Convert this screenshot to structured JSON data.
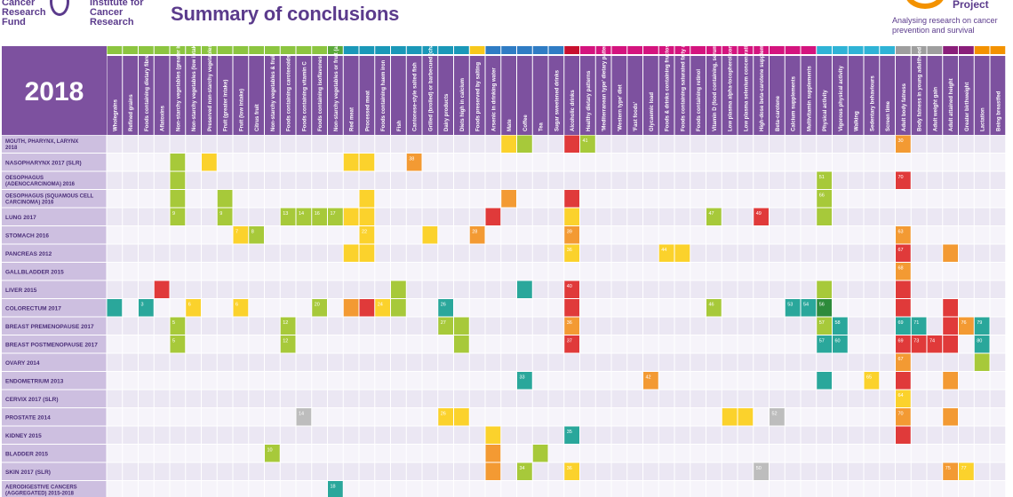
{
  "header": {
    "logo_left_lines": [
      "Cancer",
      "Research",
      "Fund"
    ],
    "logo_mid_lines": [
      "Institute for",
      "Cancer",
      "Research"
    ],
    "title": "Summary of conclusions",
    "project_label": "Project",
    "tagline": "Analysing research on cancer prevention and survival"
  },
  "matrix": {
    "year": "2018",
    "columns": [
      {
        "label": "Wholegrains",
        "group": "g"
      },
      {
        "label": "Refined grains",
        "group": "g"
      },
      {
        "label": "Foods containing dietary fibre",
        "group": "g"
      },
      {
        "label": "Aflatoxins",
        "group": "g"
      },
      {
        "label": "Non-starchy vegetables (greater intake)",
        "group": "g"
      },
      {
        "label": "Non-starchy vegetables (low intake)",
        "group": "g"
      },
      {
        "label": "Preserved non-starchy vegetables",
        "group": "g"
      },
      {
        "label": "Fruit (greater intake)",
        "group": "g"
      },
      {
        "label": "Fruit (low intake)",
        "group": "g"
      },
      {
        "label": "Citrus fruit",
        "group": "g"
      },
      {
        "label": "Non-starchy vegetables & fruit",
        "group": "g"
      },
      {
        "label": "Foods containing carotenoids",
        "group": "g"
      },
      {
        "label": "Foods containing vitamin C",
        "group": "g"
      },
      {
        "label": "Foods containing isoflavones",
        "group": "g"
      },
      {
        "label": "Non-starchy vegetables or fruit (aggregated)",
        "group": "g2"
      },
      {
        "label": "Red meat",
        "group": "t"
      },
      {
        "label": "Processed meat",
        "group": "t"
      },
      {
        "label": "Foods containing haem iron",
        "group": "t"
      },
      {
        "label": "Fish",
        "group": "t"
      },
      {
        "label": "Cantonese-style salted fish",
        "group": "t"
      },
      {
        "label": "Grilled (broiled) or barbecued (charbroiled) meat and fish",
        "group": "t"
      },
      {
        "label": "Dairy products",
        "group": "t"
      },
      {
        "label": "Diets high in calcium",
        "group": "t"
      },
      {
        "label": "Foods preserved by salting",
        "group": "y"
      },
      {
        "label": "Arsenic in drinking water",
        "group": "b"
      },
      {
        "label": "Mate",
        "group": "b"
      },
      {
        "label": "Coffee",
        "group": "b"
      },
      {
        "label": "Tea",
        "group": "b"
      },
      {
        "label": "Sugar sweetened drinks",
        "group": "b"
      },
      {
        "label": "Alcoholic drinks",
        "group": "r"
      },
      {
        "label": "Healthy dietary patterns",
        "group": "m"
      },
      {
        "label": "'Mediterranean type' dietary pattern",
        "group": "m"
      },
      {
        "label": "'Western type' diet",
        "group": "m"
      },
      {
        "label": "'Fast foods'",
        "group": "m"
      },
      {
        "label": "Glycaemic load",
        "group": "m"
      },
      {
        "label": "Foods & drinks containing fructose",
        "group": "m"
      },
      {
        "label": "Foods containing saturated fatty acids",
        "group": "m"
      },
      {
        "label": "Foods containing retinol",
        "group": "m"
      },
      {
        "label": "Vitamin D (food containing, serum, supplements)",
        "group": "m"
      },
      {
        "label": "Low plasma alpha-tocopherol concentrations",
        "group": "m"
      },
      {
        "label": "Low plasma selenium concentrations",
        "group": "m"
      },
      {
        "label": "High-dose beta-carotene supplements",
        "group": "m"
      },
      {
        "label": "Beta-carotene",
        "group": "m"
      },
      {
        "label": "Calcium supplements",
        "group": "m"
      },
      {
        "label": "Multivitamin supplements",
        "group": "m"
      },
      {
        "label": "Physical activity",
        "group": "c"
      },
      {
        "label": "Vigorous physical activity",
        "group": "c"
      },
      {
        "label": "Walking",
        "group": "c"
      },
      {
        "label": "Sedentary behaviours",
        "group": "c"
      },
      {
        "label": "Screen time",
        "group": "c"
      },
      {
        "label": "Adult body fatness",
        "group": "s"
      },
      {
        "label": "Body fatness in young adulthood",
        "group": "s"
      },
      {
        "label": "Adult weight gain",
        "group": "s"
      },
      {
        "label": "Adult attained height",
        "group": "p"
      },
      {
        "label": "Greater birthweight",
        "group": "p"
      },
      {
        "label": "Lactation",
        "group": "o"
      },
      {
        "label": "Being breastfed",
        "group": "o"
      }
    ],
    "rows": [
      "MOUTH, PHARYNX, LARYNX 2018",
      "NASOPHARYNX 2017 (SLR)",
      "OESOPHAGUS (ADENOCARCINOMA) 2016",
      "OESOPHAGUS (SQUAMOUS CELL CARCINOMA) 2016",
      "LUNG 2017",
      "STOMACH 2016",
      "PANCREAS 2012",
      "GALLBLADDER 2015",
      "LIVER 2015",
      "COLORECTUM 2017",
      "BREAST PREMENOPAUSE 2017",
      "BREAST POSTMENOPAUSE 2017",
      "OVARY 2014",
      "ENDOMETRIUM 2013",
      "CERVIX 2017 (SLR)",
      "PROSTATE 2014",
      "KIDNEY 2015",
      "BLADDER 2015",
      "SKIN 2017 (SLR)",
      "AERODIGESTIVE CANCERS (AGGREGATED) 2015-2018"
    ],
    "cells": [
      {
        "r": 0,
        "c": 25,
        "k": "Y"
      },
      {
        "r": 0,
        "c": 26,
        "k": "L"
      },
      {
        "r": 0,
        "c": 29,
        "k": "R"
      },
      {
        "r": 0,
        "c": 30,
        "k": "L",
        "t": "41"
      },
      {
        "r": 0,
        "c": 50,
        "k": "O",
        "t": "30"
      },
      {
        "r": 1,
        "c": 4,
        "k": "L"
      },
      {
        "r": 1,
        "c": 6,
        "k": "Y"
      },
      {
        "r": 1,
        "c": 15,
        "k": "Y"
      },
      {
        "r": 1,
        "c": 16,
        "k": "Y"
      },
      {
        "r": 1,
        "c": 19,
        "k": "O",
        "t": "38"
      },
      {
        "r": 2,
        "c": 4,
        "k": "L"
      },
      {
        "r": 2,
        "c": 45,
        "k": "L",
        "t": "51"
      },
      {
        "r": 2,
        "c": 50,
        "k": "R",
        "t": "70"
      },
      {
        "r": 3,
        "c": 4,
        "k": "L"
      },
      {
        "r": 3,
        "c": 7,
        "k": "L"
      },
      {
        "r": 3,
        "c": 16,
        "k": "Y"
      },
      {
        "r": 3,
        "c": 25,
        "k": "O"
      },
      {
        "r": 3,
        "c": 29,
        "k": "R"
      },
      {
        "r": 3,
        "c": 45,
        "k": "L",
        "t": "66"
      },
      {
        "r": 4,
        "c": 4,
        "k": "L",
        "t": "9"
      },
      {
        "r": 4,
        "c": 7,
        "k": "L",
        "t": "9"
      },
      {
        "r": 4,
        "c": 11,
        "k": "L",
        "t": "13"
      },
      {
        "r": 4,
        "c": 12,
        "k": "L",
        "t": "14"
      },
      {
        "r": 4,
        "c": 13,
        "k": "L",
        "t": "16"
      },
      {
        "r": 4,
        "c": 14,
        "k": "L",
        "t": "17"
      },
      {
        "r": 4,
        "c": 15,
        "k": "Y"
      },
      {
        "r": 4,
        "c": 16,
        "k": "Y"
      },
      {
        "r": 4,
        "c": 24,
        "k": "R"
      },
      {
        "r": 4,
        "c": 29,
        "k": "Y"
      },
      {
        "r": 4,
        "c": 38,
        "k": "L",
        "t": "47"
      },
      {
        "r": 4,
        "c": 41,
        "k": "R",
        "t": "49"
      },
      {
        "r": 4,
        "c": 45,
        "k": "L"
      },
      {
        "r": 5,
        "c": 8,
        "k": "Y",
        "t": "7"
      },
      {
        "r": 5,
        "c": 9,
        "k": "L",
        "t": "8"
      },
      {
        "r": 5,
        "c": 16,
        "k": "Y",
        "t": "22"
      },
      {
        "r": 5,
        "c": 20,
        "k": "Y"
      },
      {
        "r": 5,
        "c": 23,
        "k": "O",
        "t": "28"
      },
      {
        "r": 5,
        "c": 29,
        "k": "O",
        "t": "39"
      },
      {
        "r": 5,
        "c": 50,
        "k": "O",
        "t": "63"
      },
      {
        "r": 6,
        "c": 15,
        "k": "Y"
      },
      {
        "r": 6,
        "c": 16,
        "k": "Y"
      },
      {
        "r": 6,
        "c": 29,
        "k": "Y",
        "t": "36"
      },
      {
        "r": 6,
        "c": 35,
        "k": "Y",
        "t": "44"
      },
      {
        "r": 6,
        "c": 36,
        "k": "Y"
      },
      {
        "r": 6,
        "c": 50,
        "k": "R",
        "t": "67"
      },
      {
        "r": 6,
        "c": 53,
        "k": "O"
      },
      {
        "r": 7,
        "c": 50,
        "k": "O",
        "t": "68"
      },
      {
        "r": 8,
        "c": 3,
        "k": "R"
      },
      {
        "r": 8,
        "c": 18,
        "k": "L"
      },
      {
        "r": 8,
        "c": 26,
        "k": "T"
      },
      {
        "r": 8,
        "c": 29,
        "k": "R",
        "t": "40"
      },
      {
        "r": 8,
        "c": 45,
        "k": "L"
      },
      {
        "r": 8,
        "c": 50,
        "k": "R"
      },
      {
        "r": 9,
        "c": 0,
        "k": "T"
      },
      {
        "r": 9,
        "c": 2,
        "k": "T",
        "t": "3"
      },
      {
        "r": 9,
        "c": 5,
        "k": "Y",
        "t": "6"
      },
      {
        "r": 9,
        "c": 8,
        "k": "Y",
        "t": "6"
      },
      {
        "r": 9,
        "c": 13,
        "k": "L",
        "t": "20"
      },
      {
        "r": 9,
        "c": 15,
        "k": "O"
      },
      {
        "r": 9,
        "c": 16,
        "k": "R"
      },
      {
        "r": 9,
        "c": 17,
        "k": "Y",
        "t": "24"
      },
      {
        "r": 9,
        "c": 18,
        "k": "L"
      },
      {
        "r": 9,
        "c": 21,
        "k": "T",
        "t": "26"
      },
      {
        "r": 9,
        "c": 29,
        "k": "R"
      },
      {
        "r": 9,
        "c": 38,
        "k": "L",
        "t": "46"
      },
      {
        "r": 9,
        "c": 43,
        "k": "T",
        "t": "53"
      },
      {
        "r": 9,
        "c": 44,
        "k": "T",
        "t": "54"
      },
      {
        "r": 9,
        "c": 45,
        "k": "D",
        "t": "56"
      },
      {
        "r": 9,
        "c": 50,
        "k": "R"
      },
      {
        "r": 9,
        "c": 53,
        "k": "R"
      },
      {
        "r": 10,
        "c": 4,
        "k": "L",
        "t": "5"
      },
      {
        "r": 10,
        "c": 11,
        "k": "L",
        "t": "12"
      },
      {
        "r": 10,
        "c": 21,
        "k": "L",
        "t": "27"
      },
      {
        "r": 10,
        "c": 22,
        "k": "L"
      },
      {
        "r": 10,
        "c": 29,
        "k": "O",
        "t": "36"
      },
      {
        "r": 10,
        "c": 45,
        "k": "L",
        "t": "57"
      },
      {
        "r": 10,
        "c": 46,
        "k": "T",
        "t": "58"
      },
      {
        "r": 10,
        "c": 50,
        "k": "T",
        "t": "69"
      },
      {
        "r": 10,
        "c": 51,
        "k": "T",
        "t": "71"
      },
      {
        "r": 10,
        "c": 53,
        "k": "R"
      },
      {
        "r": 10,
        "c": 54,
        "k": "O",
        "t": "76"
      },
      {
        "r": 10,
        "c": 55,
        "k": "T",
        "t": "79"
      },
      {
        "r": 11,
        "c": 4,
        "k": "L",
        "t": "5"
      },
      {
        "r": 11,
        "c": 11,
        "k": "L",
        "t": "12"
      },
      {
        "r": 11,
        "c": 22,
        "k": "L"
      },
      {
        "r": 11,
        "c": 29,
        "k": "R",
        "t": "37"
      },
      {
        "r": 11,
        "c": 45,
        "k": "T",
        "t": "57"
      },
      {
        "r": 11,
        "c": 46,
        "k": "T",
        "t": "60"
      },
      {
        "r": 11,
        "c": 50,
        "k": "R",
        "t": "69"
      },
      {
        "r": 11,
        "c": 51,
        "k": "R",
        "t": "73"
      },
      {
        "r": 11,
        "c": 52,
        "k": "R",
        "t": "74"
      },
      {
        "r": 11,
        "c": 53,
        "k": "R"
      },
      {
        "r": 11,
        "c": 55,
        "k": "T",
        "t": "80"
      },
      {
        "r": 12,
        "c": 50,
        "k": "O",
        "t": "67"
      },
      {
        "r": 12,
        "c": 55,
        "k": "L"
      },
      {
        "r": 13,
        "c": 26,
        "k": "T",
        "t": "33"
      },
      {
        "r": 13,
        "c": 34,
        "k": "O",
        "t": "42"
      },
      {
        "r": 13,
        "c": 45,
        "k": "T"
      },
      {
        "r": 13,
        "c": 48,
        "k": "Y",
        "t": "65"
      },
      {
        "r": 13,
        "c": 50,
        "k": "R"
      },
      {
        "r": 13,
        "c": 53,
        "k": "O"
      },
      {
        "r": 14,
        "c": 50,
        "k": "Y",
        "t": "64"
      },
      {
        "r": 15,
        "c": 12,
        "k": "G",
        "t": "14"
      },
      {
        "r": 15,
        "c": 21,
        "k": "Y",
        "t": "26"
      },
      {
        "r": 15,
        "c": 22,
        "k": "Y"
      },
      {
        "r": 15,
        "c": 39,
        "k": "Y"
      },
      {
        "r": 15,
        "c": 40,
        "k": "Y"
      },
      {
        "r": 15,
        "c": 42,
        "k": "G",
        "t": "52"
      },
      {
        "r": 15,
        "c": 50,
        "k": "O",
        "t": "70"
      },
      {
        "r": 15,
        "c": 53,
        "k": "O"
      },
      {
        "r": 16,
        "c": 24,
        "k": "Y"
      },
      {
        "r": 16,
        "c": 29,
        "k": "T",
        "t": "35"
      },
      {
        "r": 16,
        "c": 50,
        "k": "R"
      },
      {
        "r": 17,
        "c": 10,
        "k": "L",
        "t": "10"
      },
      {
        "r": 17,
        "c": 24,
        "k": "O"
      },
      {
        "r": 17,
        "c": 27,
        "k": "L"
      },
      {
        "r": 18,
        "c": 24,
        "k": "O"
      },
      {
        "r": 18,
        "c": 26,
        "k": "L",
        "t": "34"
      },
      {
        "r": 18,
        "c": 29,
        "k": "Y",
        "t": "36"
      },
      {
        "r": 18,
        "c": 41,
        "k": "G",
        "t": "50"
      },
      {
        "r": 18,
        "c": 53,
        "k": "O",
        "t": "75"
      },
      {
        "r": 18,
        "c": 54,
        "k": "Y",
        "t": "77"
      },
      {
        "r": 19,
        "c": 14,
        "k": "T",
        "t": "18"
      }
    ],
    "colors": {
      "R": "#e03a3a",
      "O": "#f39a33",
      "Y": "#fbd22c",
      "L": "#a7c93a",
      "D": "#2e8b3b",
      "T": "#2aa79b",
      "G": "#bdbdbd",
      "purple": "#7d519f",
      "row_label": "#cdbfe0",
      "row_label_text": "#4a2e78",
      "stripe_a": "#ebe7f3",
      "stripe_b": "#f6f4fa",
      "group_g": "#8cc540",
      "group_g2": "#5aa83a",
      "group_t": "#1a98b8",
      "group_y": "#f7c81c",
      "group_b": "#2f7cc4",
      "group_r": "#c8102e",
      "group_m": "#d4147e",
      "group_c": "#2fb3d6",
      "group_s": "#9e9e9e",
      "group_p": "#8a1f7a",
      "group_o": "#f39200"
    }
  }
}
